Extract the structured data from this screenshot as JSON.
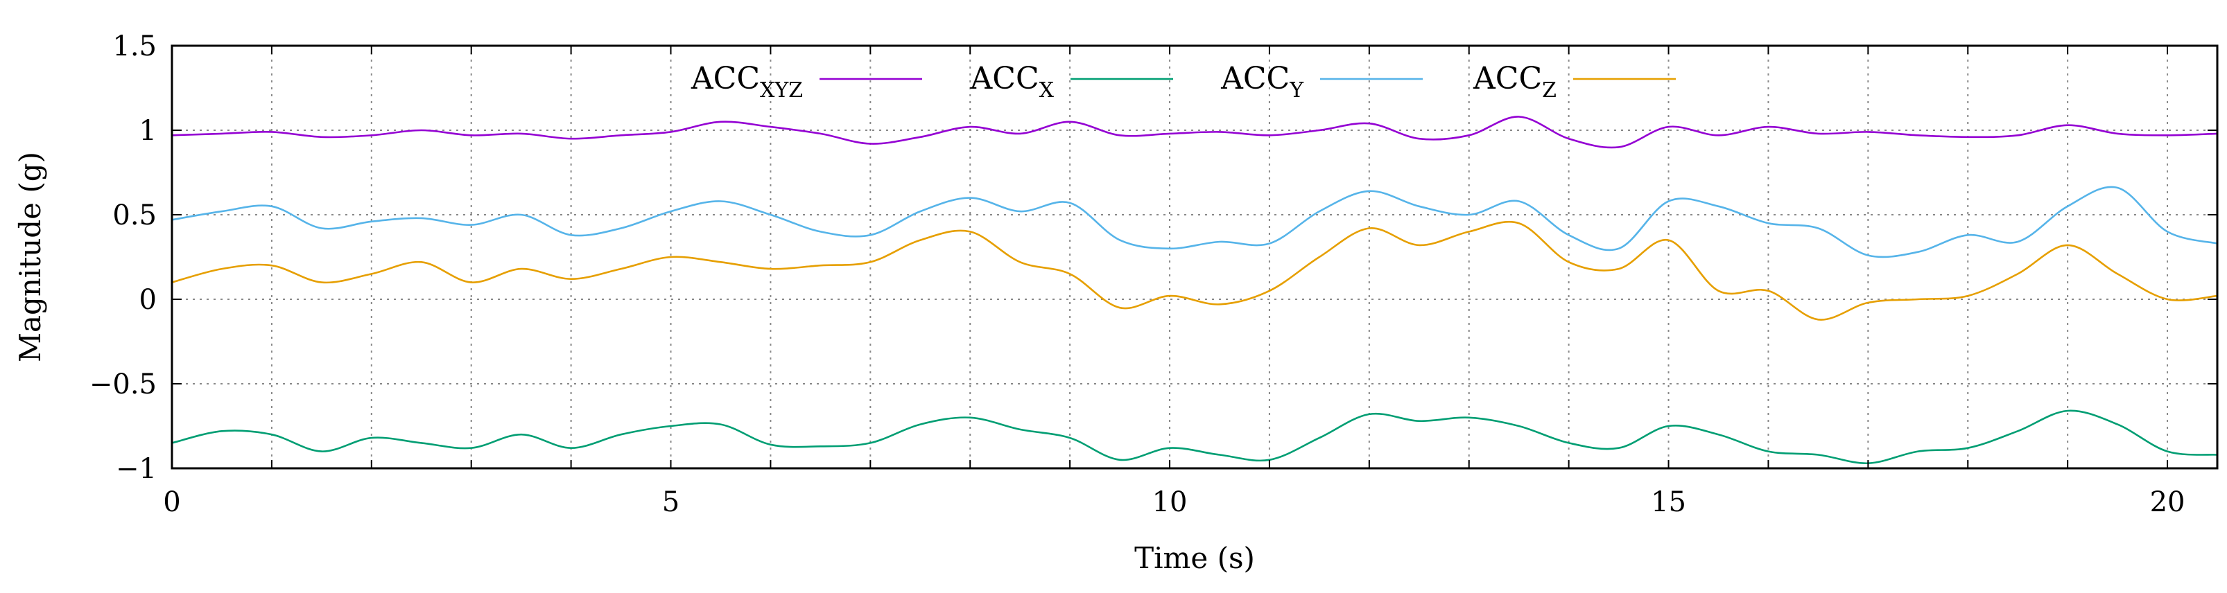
{
  "chart_data": {
    "type": "line",
    "title": "",
    "xlabel": "Time (s)",
    "ylabel": "Magnitude (g)",
    "xlim": [
      0,
      20.5
    ],
    "ylim": [
      -1,
      1.5
    ],
    "grid": true,
    "legend_position": "top-center",
    "x_ticks": [
      {
        "value": 0,
        "label": "0"
      },
      {
        "value": 5,
        "label": "5"
      },
      {
        "value": 10,
        "label": "10"
      },
      {
        "value": 15,
        "label": "15"
      },
      {
        "value": 20,
        "label": "20"
      }
    ],
    "x_grid": [
      0,
      1,
      2,
      3,
      4,
      5,
      6,
      7,
      8,
      9,
      10,
      11,
      12,
      13,
      14,
      15,
      16,
      17,
      18,
      19,
      20
    ],
    "y_ticks": [
      {
        "value": -1,
        "label": "−1"
      },
      {
        "value": -0.5,
        "label": "−0.5"
      },
      {
        "value": 0,
        "label": "0"
      },
      {
        "value": 0.5,
        "label": "0.5"
      },
      {
        "value": 1,
        "label": "1"
      },
      {
        "value": 1.5,
        "label": "1.5"
      }
    ],
    "x": [
      0,
      0.5,
      1,
      1.5,
      2,
      2.5,
      3,
      3.5,
      4,
      4.5,
      5,
      5.5,
      6,
      6.5,
      7,
      7.5,
      8,
      8.5,
      9,
      9.5,
      10,
      10.5,
      11,
      11.5,
      12,
      12.5,
      13,
      13.5,
      14,
      14.5,
      15,
      15.5,
      16,
      16.5,
      17,
      17.5,
      18,
      18.5,
      19,
      19.5,
      20,
      20.5
    ],
    "series": [
      {
        "name": "ACC_XYZ",
        "legend_main": "ACC",
        "legend_sub": "XYZ",
        "color": "#9400D3",
        "values": [
          0.97,
          0.98,
          0.99,
          0.96,
          0.97,
          1.0,
          0.97,
          0.98,
          0.95,
          0.97,
          0.99,
          1.05,
          1.02,
          0.98,
          0.92,
          0.96,
          1.02,
          0.98,
          1.05,
          0.97,
          0.98,
          0.99,
          0.97,
          1.0,
          1.04,
          0.95,
          0.97,
          1.08,
          0.95,
          0.9,
          1.02,
          0.97,
          1.02,
          0.98,
          0.99,
          0.97,
          0.96,
          0.97,
          1.03,
          0.98,
          0.97,
          0.98
        ]
      },
      {
        "name": "ACC_X",
        "legend_main": "ACC",
        "legend_sub": "X",
        "color": "#009E73",
        "values": [
          -0.85,
          -0.78,
          -0.8,
          -0.9,
          -0.82,
          -0.85,
          -0.88,
          -0.8,
          -0.88,
          -0.8,
          -0.75,
          -0.74,
          -0.86,
          -0.87,
          -0.85,
          -0.74,
          -0.7,
          -0.77,
          -0.82,
          -0.95,
          -0.88,
          -0.92,
          -0.95,
          -0.82,
          -0.68,
          -0.72,
          -0.7,
          -0.75,
          -0.85,
          -0.88,
          -0.75,
          -0.8,
          -0.9,
          -0.92,
          -0.97,
          -0.9,
          -0.88,
          -0.78,
          -0.66,
          -0.74,
          -0.9,
          -0.92
        ]
      },
      {
        "name": "ACC_Y",
        "legend_main": "ACC",
        "legend_sub": "Y",
        "color": "#56B4E9",
        "values": [
          0.47,
          0.52,
          0.55,
          0.42,
          0.46,
          0.48,
          0.44,
          0.5,
          0.38,
          0.42,
          0.52,
          0.58,
          0.5,
          0.4,
          0.38,
          0.52,
          0.6,
          0.52,
          0.57,
          0.35,
          0.3,
          0.34,
          0.33,
          0.52,
          0.64,
          0.55,
          0.5,
          0.58,
          0.38,
          0.3,
          0.58,
          0.55,
          0.45,
          0.42,
          0.26,
          0.28,
          0.38,
          0.34,
          0.55,
          0.66,
          0.4,
          0.33
        ]
      },
      {
        "name": "ACC_Z",
        "legend_main": "ACC",
        "legend_sub": "Z",
        "color": "#E69F00",
        "values": [
          0.1,
          0.18,
          0.2,
          0.1,
          0.15,
          0.22,
          0.1,
          0.18,
          0.12,
          0.18,
          0.25,
          0.22,
          0.18,
          0.2,
          0.22,
          0.35,
          0.4,
          0.22,
          0.15,
          -0.05,
          0.02,
          -0.03,
          0.05,
          0.25,
          0.42,
          0.32,
          0.4,
          0.45,
          0.22,
          0.18,
          0.35,
          0.05,
          0.05,
          -0.12,
          -0.02,
          0.0,
          0.02,
          0.15,
          0.32,
          0.15,
          0.0,
          0.02
        ]
      }
    ]
  }
}
